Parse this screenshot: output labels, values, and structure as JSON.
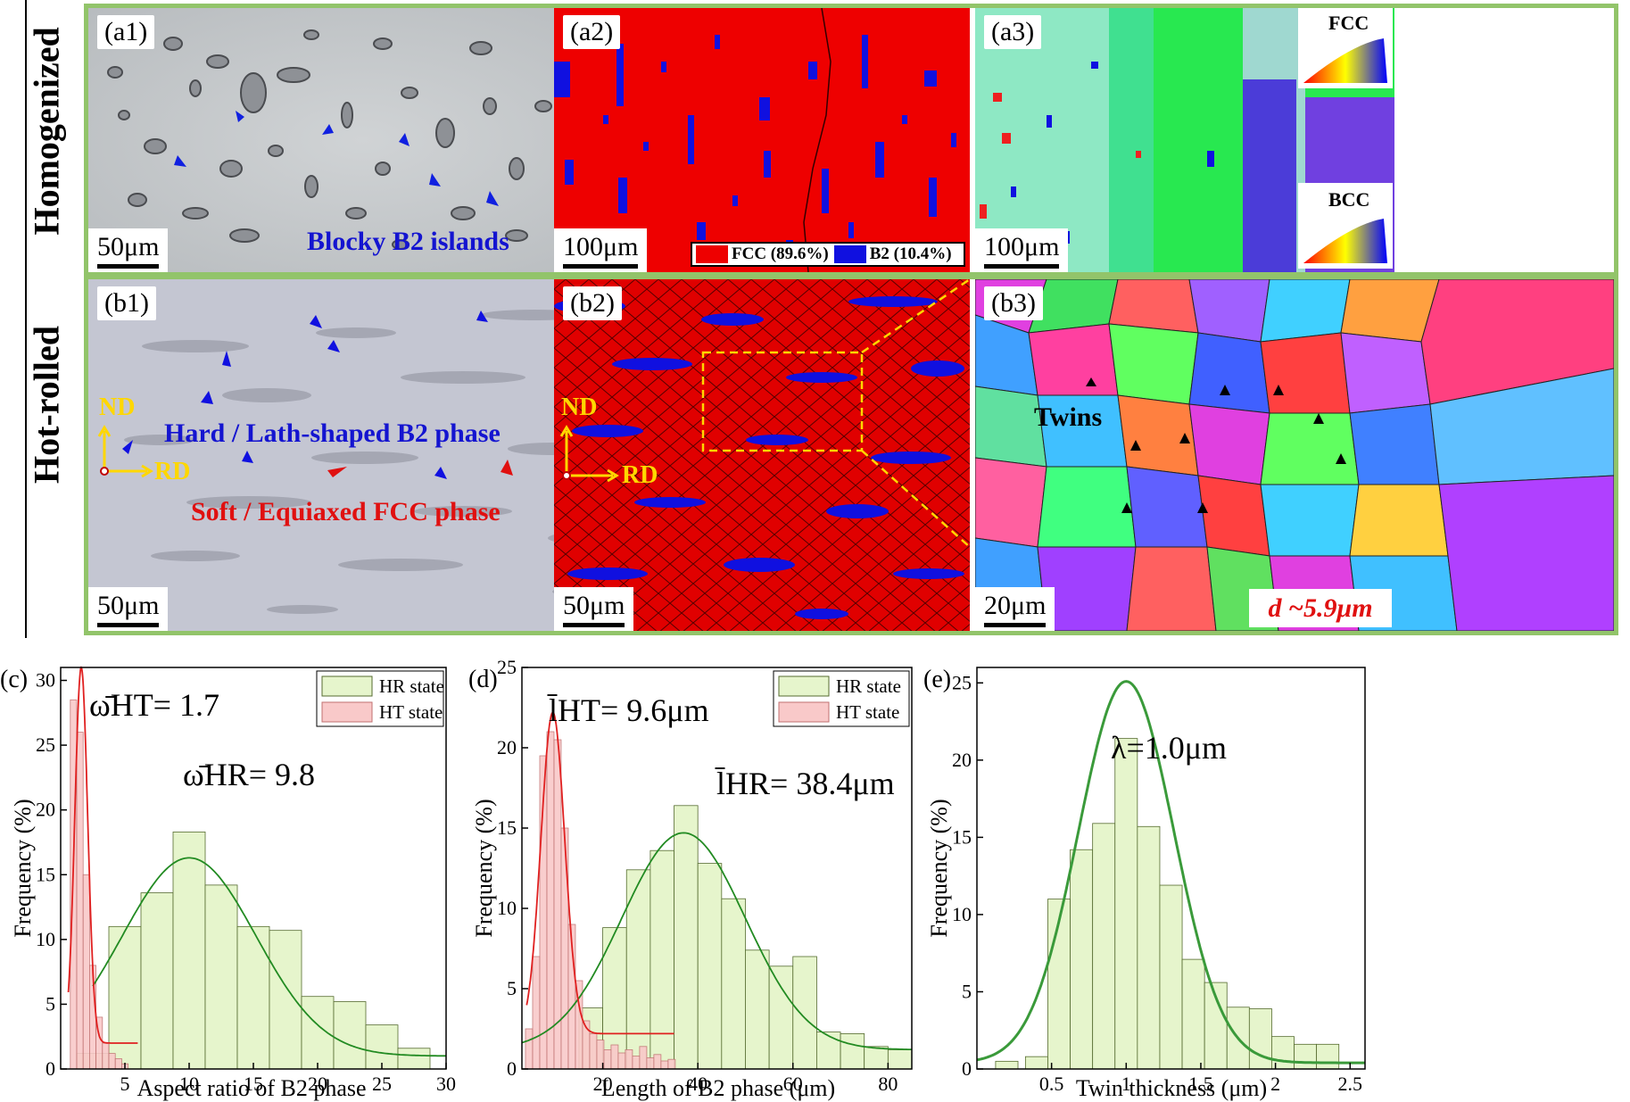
{
  "rows": {
    "homogenized": "Homogenized",
    "hot_rolled": "Hot-rolled"
  },
  "panels": {
    "a1": {
      "label": "(a1)",
      "scale": "50μm",
      "caption": "Blocky B2 islands"
    },
    "a2": {
      "label": "(a2)",
      "scale": "100μm",
      "legend_fcc": "FCC (89.6%)",
      "legend_b2": "B2 (10.4%)"
    },
    "a3": {
      "label": "(a3)",
      "scale": "100μm",
      "ipf_fcc": "FCC",
      "ipf_bcc": "BCC"
    },
    "b1": {
      "label": "(b1)",
      "scale": "50μm",
      "caption_b2": "Hard / Lath-shaped B2 phase",
      "caption_fcc": "Soft / Equiaxed FCC phase",
      "axis_nd": "ND",
      "axis_rd": "RD"
    },
    "b2": {
      "label": "(b2)",
      "scale": "50μm",
      "axis_nd": "ND",
      "axis_rd": "RD"
    },
    "b3": {
      "label": "(b3)",
      "scale": "20μm",
      "twins": "Twins",
      "grain_size": "d ~5.9μm"
    }
  },
  "colors": {
    "frame": "#92c46a",
    "fcc": "#ee0000",
    "b2": "#1010e0",
    "hr_bar": "#e6f5cc",
    "ht_bar": "#f9c9c9",
    "hr_fit": "#228b22",
    "ht_fit": "#e02020"
  },
  "chart_data": [
    {
      "id": "c",
      "type": "bar",
      "label": "(c)",
      "xlabel": "Aspect ratio of B2 phase",
      "ylabel": "Frequency (%)",
      "xlim": [
        0,
        30
      ],
      "ylim": [
        0,
        31
      ],
      "xticks": [
        5,
        10,
        15,
        20,
        25,
        30
      ],
      "yticks": [
        0,
        5,
        10,
        15,
        20,
        25,
        30
      ],
      "annotations": [
        {
          "text": "ω̄HT= 1.7"
        },
        {
          "text": "ω̄HR= 9.8"
        }
      ],
      "legend": [
        "HR state",
        "HT state"
      ],
      "series": [
        {
          "name": "HR state",
          "bin_width": 2.5,
          "x": [
            2.5,
            5,
            7.5,
            10,
            12.5,
            15,
            17.5,
            20,
            22.5,
            25,
            27.5
          ],
          "values": [
            1.2,
            11.0,
            13.6,
            18.3,
            14.2,
            11.0,
            10.7,
            5.6,
            5.2,
            3.4,
            1.6
          ]
        },
        {
          "name": "HT state",
          "bin_width": 0.5,
          "x": [
            1.0,
            1.5,
            2.0,
            2.5,
            3.0,
            3.5,
            4.0,
            4.5,
            5.0
          ],
          "values": [
            28.5,
            26.0,
            15.0,
            8.0,
            4.0,
            2.0,
            1.2,
            0.8,
            0.4
          ]
        }
      ],
      "fits": [
        {
          "series": "HR state",
          "x0": 2.5,
          "x1": 30,
          "mean": 10,
          "sigma": 5.2,
          "amplitude": 15.3,
          "base": 1.0
        },
        {
          "series": "HT state",
          "x0": 0.6,
          "x1": 6,
          "mean": 1.6,
          "sigma": 0.5,
          "amplitude": 29.0,
          "base": 2.0
        }
      ]
    },
    {
      "id": "d",
      "type": "bar",
      "label": "(d)",
      "xlabel": "Length of B2 phase (μm)",
      "ylabel": "Frequency (%)",
      "xlim": [
        3,
        85
      ],
      "ylim": [
        0,
        25
      ],
      "xticks": [
        20,
        40,
        60,
        80
      ],
      "yticks": [
        0,
        5,
        10,
        15,
        20,
        25
      ],
      "annotations": [
        {
          "text": "l̄HT= 9.6μm"
        },
        {
          "text": "l̄HR= 38.4μm"
        }
      ],
      "legend": [
        "HR state",
        "HT state"
      ],
      "series": [
        {
          "name": "HR state",
          "bin_width": 5,
          "x": [
            17.5,
            22.5,
            27.5,
            32.5,
            37.5,
            42.5,
            47.5,
            52.5,
            57.5,
            62.5,
            67.5,
            72.5,
            77.5,
            82.5
          ],
          "values": [
            3.8,
            8.8,
            12.4,
            13.6,
            16.4,
            12.8,
            10.6,
            7.4,
            6.4,
            7.0,
            2.3,
            2.2,
            1.4,
            1.2
          ]
        },
        {
          "name": "HT state",
          "bin_width": 1.5,
          "x": [
            4.5,
            6,
            7.5,
            9,
            10.5,
            12,
            13.5,
            15,
            16.5,
            18,
            19.5,
            21,
            22.5,
            24,
            25.5,
            27,
            28.5,
            30,
            31.5,
            33,
            34.5
          ],
          "values": [
            2.5,
            7.0,
            19.5,
            21.0,
            20.5,
            15.0,
            9.0,
            5.5,
            3.0,
            2.2,
            1.8,
            1.2,
            1.5,
            1.0,
            1.2,
            0.8,
            1.4,
            0.7,
            0.9,
            0.5,
            0.6
          ]
        }
      ],
      "fits": [
        {
          "series": "HR state",
          "x0": 3,
          "x1": 85,
          "mean": 37,
          "sigma": 13,
          "amplitude": 13.5,
          "base": 1.2
        },
        {
          "series": "HT state",
          "x0": 4,
          "x1": 35,
          "mean": 9.5,
          "sigma": 2.5,
          "amplitude": 20.0,
          "base": 2.2
        }
      ]
    },
    {
      "id": "e",
      "type": "bar",
      "label": "(e)",
      "xlabel": "Twin thickness (μm)",
      "ylabel": "Frequency (%)",
      "xlim": [
        0.0,
        2.6
      ],
      "ylim": [
        0,
        26
      ],
      "xticks": [
        0.5,
        1.0,
        1.5,
        2.0,
        2.5
      ],
      "yticks": [
        0,
        5,
        10,
        15,
        20,
        25
      ],
      "annotations": [
        {
          "text": "λ=1.0μm"
        }
      ],
      "series": [
        {
          "name": "",
          "bin_width": 0.15,
          "x": [
            0.2,
            0.4,
            0.55,
            0.7,
            0.85,
            1.0,
            1.15,
            1.3,
            1.45,
            1.6,
            1.75,
            1.9,
            2.05,
            2.2,
            2.35
          ],
          "values": [
            0.5,
            0.8,
            11.0,
            14.2,
            15.9,
            21.4,
            15.7,
            11.9,
            7.1,
            5.6,
            4.0,
            3.9,
            2.1,
            1.6,
            1.6
          ]
        }
      ],
      "fits": [
        {
          "series": "",
          "x0": 0.0,
          "x1": 2.6,
          "mean": 1.0,
          "sigma": 0.32,
          "amplitude": 24.7,
          "base": 0.4
        }
      ]
    }
  ]
}
